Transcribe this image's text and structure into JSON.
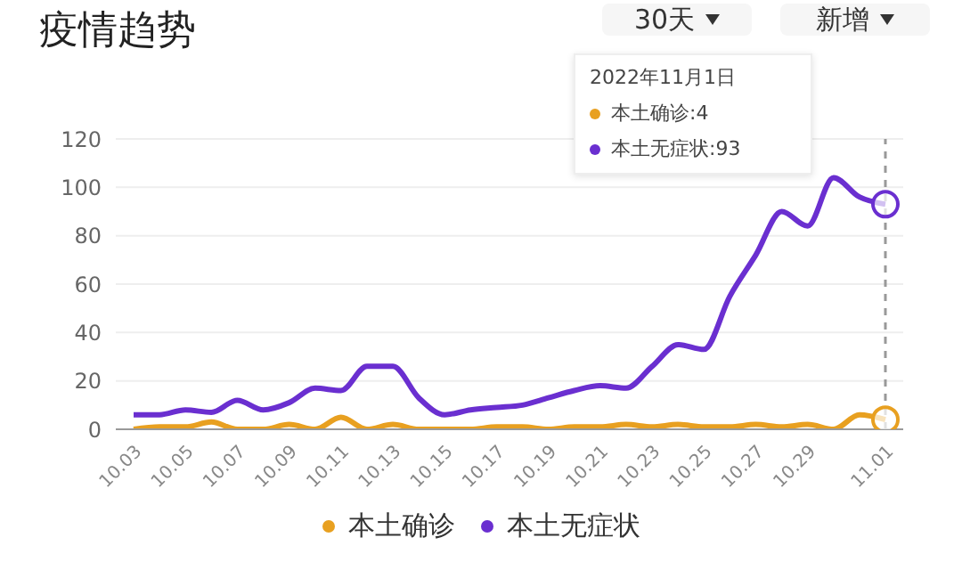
{
  "chart_data": {
    "type": "line",
    "title": "疫情趋势",
    "categories": [
      "10.03",
      null,
      "10.05",
      null,
      "10.07",
      null,
      "10.09",
      null,
      "10.11",
      null,
      "10.13",
      null,
      "10.15",
      null,
      "10.17",
      null,
      "10.19",
      null,
      "10.21",
      null,
      "10.23",
      null,
      "10.25",
      null,
      "10.27",
      null,
      "10.29",
      null,
      null,
      "11.01"
    ],
    "series": [
      {
        "name": "本土确诊",
        "color": "#e8a020",
        "values": [
          0,
          1,
          1,
          3,
          0,
          0,
          2,
          0,
          5,
          0,
          2,
          0,
          0,
          0,
          1,
          1,
          0,
          1,
          1,
          2,
          1,
          2,
          1,
          1,
          2,
          1,
          2,
          0,
          6,
          4
        ]
      },
      {
        "name": "本土无症状",
        "color": "#6a2fd0",
        "values": [
          6,
          6,
          8,
          7,
          12,
          8,
          11,
          17,
          16,
          26,
          26,
          13,
          6,
          8,
          9,
          10,
          13,
          16,
          18,
          17,
          26,
          35,
          33,
          55,
          72,
          90,
          84,
          104,
          96,
          93
        ]
      }
    ],
    "ylim": [
      0,
      120
    ],
    "yticks": [
      0,
      20,
      40,
      60,
      80,
      100,
      120
    ],
    "grid": "y",
    "legend": "bottom",
    "marker": "none",
    "ref_lines": [
      {
        "axis": "x",
        "value": "11.01",
        "color": "#999999",
        "line_style": "dashed"
      }
    ],
    "annotations": [
      "30天",
      "新增",
      "2022年11月1日",
      "本土确诊:4",
      "本土无症状:93"
    ]
  }
}
